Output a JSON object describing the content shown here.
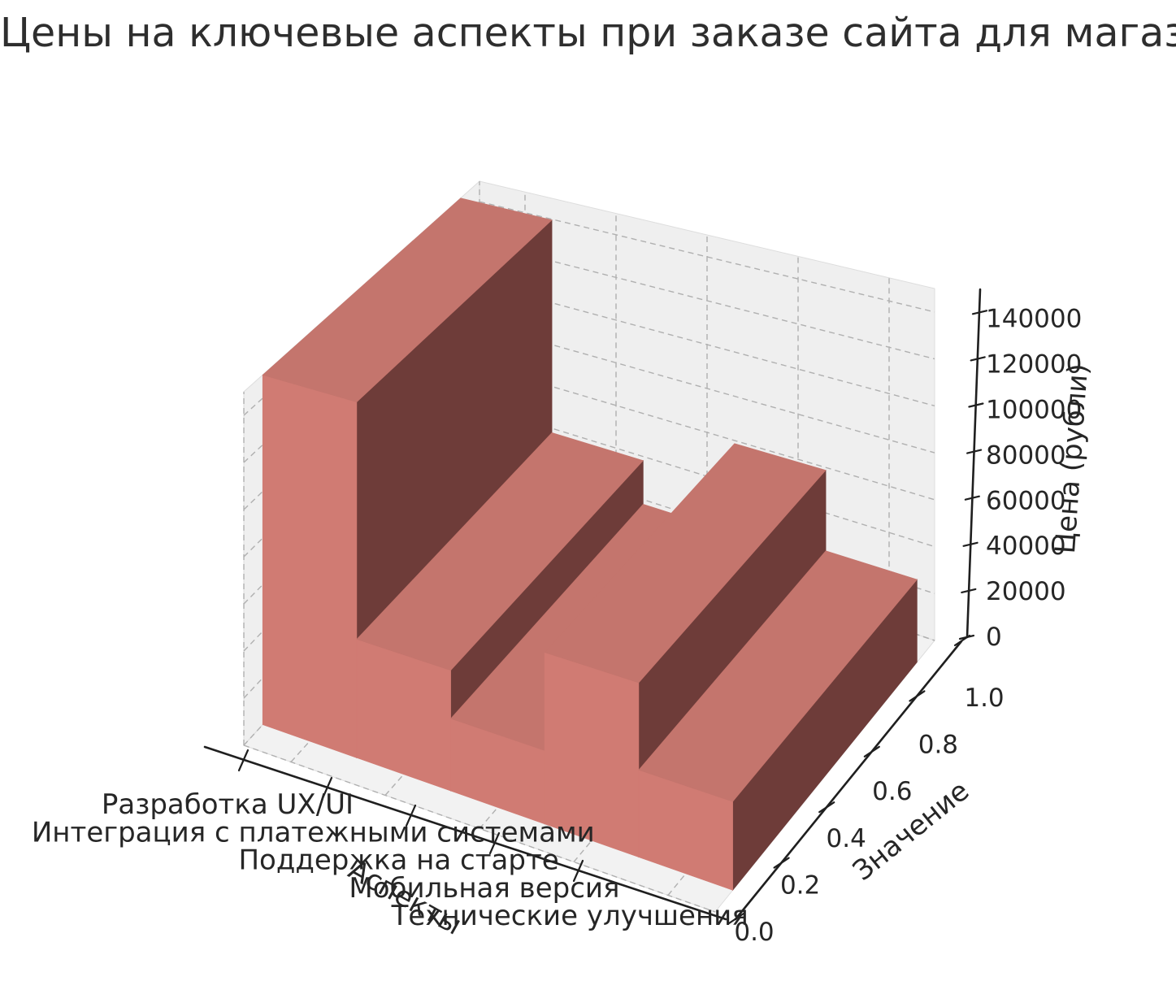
{
  "title": "Цены на ключевые аспекты при заказе сайта для магазина",
  "chart_data": {
    "type": "bar3d",
    "title": "Цены на ключевые аспекты при заказе сайта для магазина",
    "categories": [
      "Разработка UX/UI",
      "Интеграция с платежными системами",
      "Поддержка на старте",
      "Мобильная версия",
      "Технические улучшения"
    ],
    "values": [
      150000,
      50000,
      30000,
      70000,
      35000
    ],
    "xlabel": "Аспекты",
    "ylabel": "Значение",
    "zlabel": "Цена (рубли)",
    "y_ticks": [
      "0.0",
      "0.2",
      "0.4",
      "0.6",
      "0.8",
      "1.0"
    ],
    "z_ticks": [
      0,
      20000,
      40000,
      60000,
      80000,
      100000,
      120000,
      140000
    ],
    "ylim": [
      0,
      1
    ],
    "zlim": [
      0,
      150000
    ],
    "grid": "on",
    "legend": "none",
    "colors": {
      "bar_top": "#c4756d",
      "bar_front": "#d07b73",
      "bar_side": "#6e3c39",
      "pane": "#efefef",
      "floor": "#f2f2f2",
      "gridline": "#b0b0b0",
      "axis": "#1f1f1f",
      "text": "#262626"
    }
  }
}
